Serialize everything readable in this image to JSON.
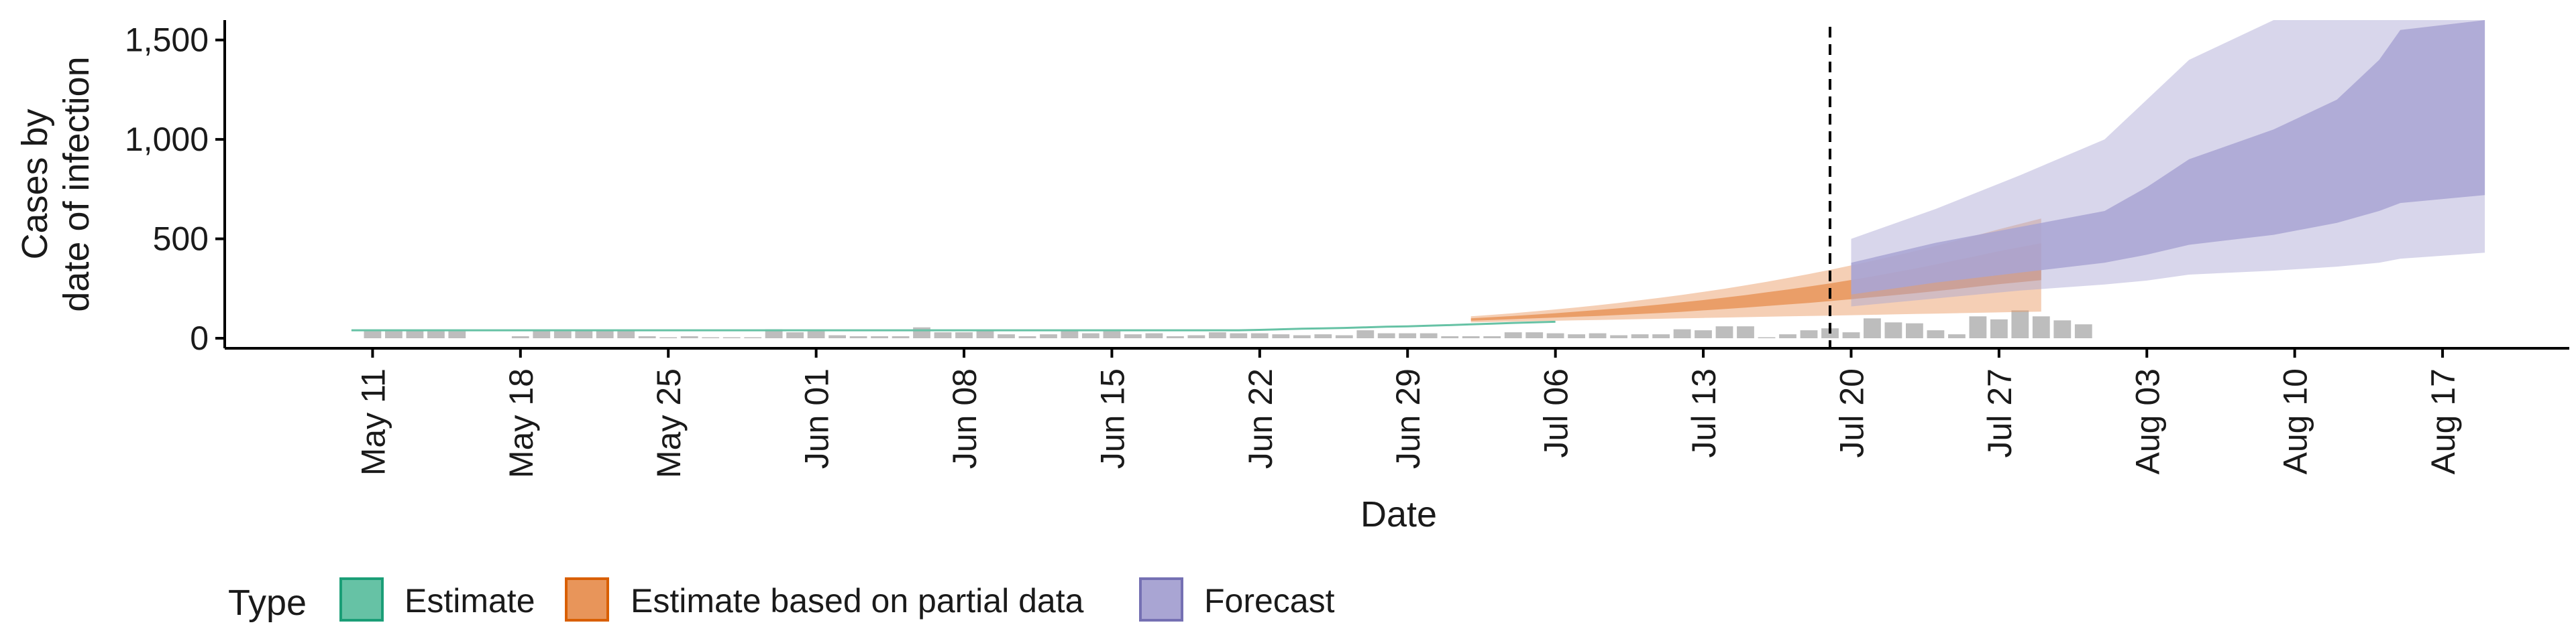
{
  "chart_data": {
    "type": "area",
    "title": "",
    "xlabel": "Date",
    "ylabel_lines": [
      "Cases by",
      "date of infection"
    ],
    "ylim": [
      0,
      1600
    ],
    "yticks": [
      0,
      500,
      1000,
      1500
    ],
    "ytick_labels": [
      "0",
      "500",
      "1,000",
      "1,500"
    ],
    "xlim": [
      "2020-05-04",
      "2020-08-23"
    ],
    "xticks": [
      "2020-05-11",
      "2020-05-18",
      "2020-05-25",
      "2020-06-01",
      "2020-06-08",
      "2020-06-15",
      "2020-06-22",
      "2020-06-29",
      "2020-07-06",
      "2020-07-13",
      "2020-07-20",
      "2020-07-27",
      "2020-08-03",
      "2020-08-10",
      "2020-08-17"
    ],
    "xtick_labels": [
      "May 11",
      "May 18",
      "May 25",
      "Jun 01",
      "Jun 08",
      "Jun 15",
      "Jun 22",
      "Jun 29",
      "Jul 06",
      "Jul 13",
      "Jul 20",
      "Jul 27",
      "Aug 03",
      "Aug 10",
      "Aug 17"
    ],
    "vline": "2020-07-19",
    "grid": false,
    "legend": {
      "title": "Type",
      "position": "bottom",
      "items": [
        {
          "label": "Estimate",
          "fill": "#66c2a5",
          "stroke": "#1b9e77"
        },
        {
          "label": "Estimate based on partial data",
          "fill": "#e8955a",
          "stroke": "#d95f02"
        },
        {
          "label": "Forecast",
          "fill": "#a9a5d3",
          "stroke": "#7570b3"
        }
      ]
    },
    "reported_cases": {
      "start": "2020-05-11",
      "values": [
        35,
        35,
        40,
        35,
        35,
        0,
        0,
        10,
        40,
        35,
        40,
        40,
        40,
        10,
        5,
        10,
        5,
        5,
        5,
        45,
        30,
        35,
        15,
        10,
        10,
        10,
        55,
        30,
        30,
        40,
        20,
        10,
        20,
        40,
        25,
        35,
        20,
        25,
        10,
        15,
        30,
        25,
        25,
        20,
        15,
        20,
        15,
        40,
        25,
        25,
        25,
        10,
        10,
        10,
        30,
        30,
        25,
        20,
        25,
        15,
        20,
        20,
        45,
        40,
        60,
        60,
        5,
        20,
        40,
        50,
        30,
        100,
        80,
        75,
        40,
        20,
        110,
        95,
        140,
        110,
        90,
        70
      ]
    },
    "series": [
      {
        "name": "Estimate",
        "color": "#66c2a5",
        "start": "2020-05-10",
        "median": [
          40,
          40,
          40,
          40,
          40,
          40,
          40,
          40,
          40,
          40,
          40,
          40,
          40,
          40,
          40,
          40,
          40,
          40,
          40,
          40,
          40,
          40,
          40,
          40,
          40,
          40,
          40,
          40,
          40,
          40,
          40,
          40,
          40,
          40,
          40,
          40,
          40,
          40,
          40,
          40,
          40,
          40,
          40,
          42,
          45,
          48,
          50,
          52,
          55,
          58,
          60,
          63,
          66,
          70,
          73,
          77,
          80,
          83
        ],
        "band": 3
      },
      {
        "name": "Estimate based on partial data",
        "color": "#e8955a",
        "start": "2020-07-02",
        "median": [
          95,
          100,
          105,
          110,
          116,
          122,
          128,
          135,
          142,
          150,
          158,
          166,
          175,
          184,
          194,
          204,
          215,
          226,
          238,
          251,
          264,
          278,
          292,
          307,
          323,
          340,
          355,
          370
        ],
        "inner_low": [
          88,
          92,
          96,
          100,
          104,
          108,
          112,
          117,
          122,
          127,
          133,
          140,
          147,
          154,
          162,
          170,
          178,
          187,
          196,
          206,
          216,
          226,
          237,
          248,
          260,
          272,
          282,
          292
        ],
        "inner_high": [
          100,
          106,
          112,
          119,
          126,
          134,
          142,
          151,
          160,
          170,
          181,
          192,
          204,
          217,
          231,
          245,
          260,
          276,
          293,
          311,
          330,
          350,
          371,
          393,
          415,
          438,
          458,
          478
        ],
        "outer_low": [
          80,
          82,
          84,
          86,
          88,
          90,
          92,
          94,
          96,
          98,
          100,
          102,
          104,
          106,
          108,
          110,
          112,
          114,
          116,
          118,
          120,
          122,
          124,
          126,
          128,
          130,
          132,
          134
        ],
        "outer_high": [
          110,
          118,
          126,
          135,
          145,
          155,
          166,
          178,
          191,
          204,
          218,
          233,
          249,
          266,
          284,
          303,
          323,
          344,
          366,
          389,
          413,
          438,
          464,
          491,
          519,
          548,
          575,
          602
        ]
      },
      {
        "name": "Forecast",
        "color": "#a9a5d3",
        "x": [
          "2020-07-20",
          "2020-07-24",
          "2020-07-28",
          "2020-08-01",
          "2020-08-03",
          "2020-08-05",
          "2020-08-09",
          "2020-08-12",
          "2020-08-14",
          "2020-08-15",
          "2020-08-19"
        ],
        "inner_low": [
          220,
          280,
          330,
          380,
          420,
          470,
          520,
          580,
          640,
          680,
          720
        ],
        "inner_high": [
          380,
          480,
          560,
          640,
          760,
          900,
          1050,
          1200,
          1400,
          1550,
          1600
        ],
        "outer_low": [
          160,
          200,
          240,
          270,
          290,
          320,
          340,
          360,
          380,
          400,
          430
        ],
        "outer_high": [
          500,
          650,
          820,
          1000,
          1200,
          1400,
          1600,
          1600,
          1600,
          1600,
          1600
        ]
      }
    ]
  }
}
